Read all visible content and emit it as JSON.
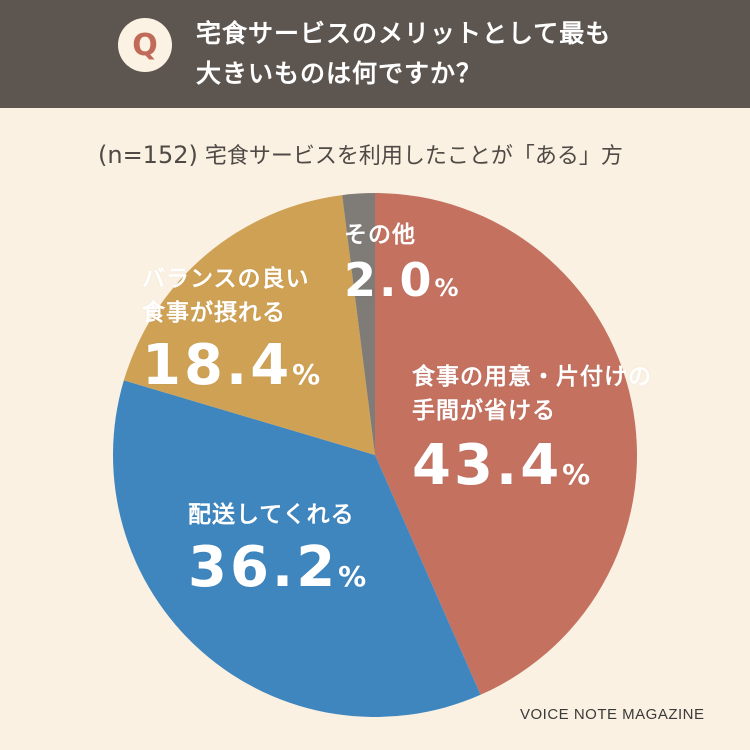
{
  "header": {
    "q_mark": "Q",
    "question_line1": "宅食サービスのメリットとして最も",
    "question_line2": "大きいものは何ですか？"
  },
  "subtitle": {
    "n": "(n=152)",
    "text": "宅食サービスを利用したことが「ある」方"
  },
  "chart_data": {
    "type": "pie",
    "title": "宅食サービスのメリットとして最も大きいものは何ですか？",
    "slices": [
      {
        "label": "食事の用意・片付けの手間が省ける",
        "label_lines": [
          "食事の用意・片付けの",
          "手間が省ける"
        ],
        "value": 43.4,
        "value_text": "43.4",
        "color": "#c47160"
      },
      {
        "label": "配送してくれる",
        "label_lines": [
          "配送してくれる"
        ],
        "value": 36.2,
        "value_text": "36.2",
        "color": "#3f86bf"
      },
      {
        "label": "バランスの良い食事が摂れる",
        "label_lines": [
          "バランスの良い",
          "食事が摂れる"
        ],
        "value": 18.4,
        "value_text": "18.4",
        "color": "#cfa154"
      },
      {
        "label": "その他",
        "label_lines": [
          "その他"
        ],
        "value": 2.0,
        "value_text": "2.0",
        "color": "#7f7b77"
      }
    ],
    "unit": "%",
    "start": "12 o'clock",
    "direction": "clockwise"
  },
  "credit": "VOICE NOTE MAGAZINE"
}
